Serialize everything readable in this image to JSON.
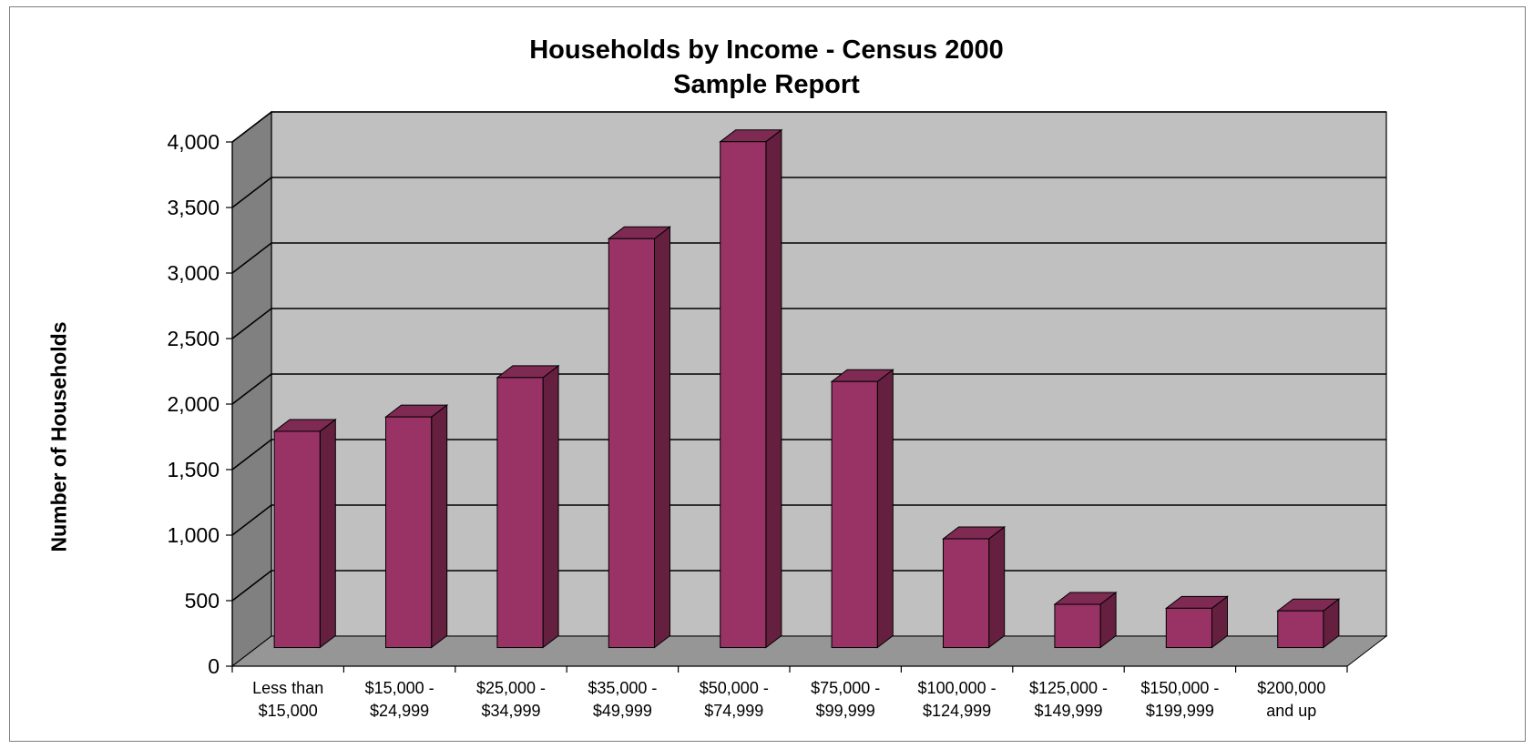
{
  "chart_data": {
    "type": "bar",
    "style": "3d-column",
    "title": "Households by Income - Census 2000",
    "subtitle": "Sample Report",
    "xlabel": "",
    "ylabel": "Number of Households",
    "ylim": [
      0,
      4000
    ],
    "yticks": [
      0,
      500,
      1000,
      1500,
      2000,
      2500,
      3000,
      3500,
      4000
    ],
    "ytick_labels": [
      "0",
      "500",
      "1,000",
      "1,500",
      "2,000",
      "2,500",
      "3,000",
      "3,500",
      "4,000"
    ],
    "categories": [
      [
        "Less than",
        "$15,000"
      ],
      [
        "$15,000 -",
        "$24,999"
      ],
      [
        "$25,000 -",
        "$34,999"
      ],
      [
        "$35,000 -",
        "$49,999"
      ],
      [
        "$50,000 -",
        "$74,999"
      ],
      [
        "$75,000 -",
        "$99,999"
      ],
      [
        "$100,000 -",
        "$124,999"
      ],
      [
        "$125,000 -",
        "$149,999"
      ],
      [
        "$150,000 -",
        "$199,999"
      ],
      [
        "$200,000",
        "and up"
      ]
    ],
    "values": [
      1650,
      1760,
      2060,
      3120,
      3860,
      2030,
      830,
      330,
      300,
      280
    ],
    "grid": true,
    "legend": "none",
    "colors": {
      "bar_front": "#993366",
      "bar_side": "#66203f",
      "bar_top": "#7e2a52",
      "wall": "#c0c0c0",
      "side_wall": "#808080",
      "floor": "#969696",
      "gridline": "#000000"
    }
  }
}
